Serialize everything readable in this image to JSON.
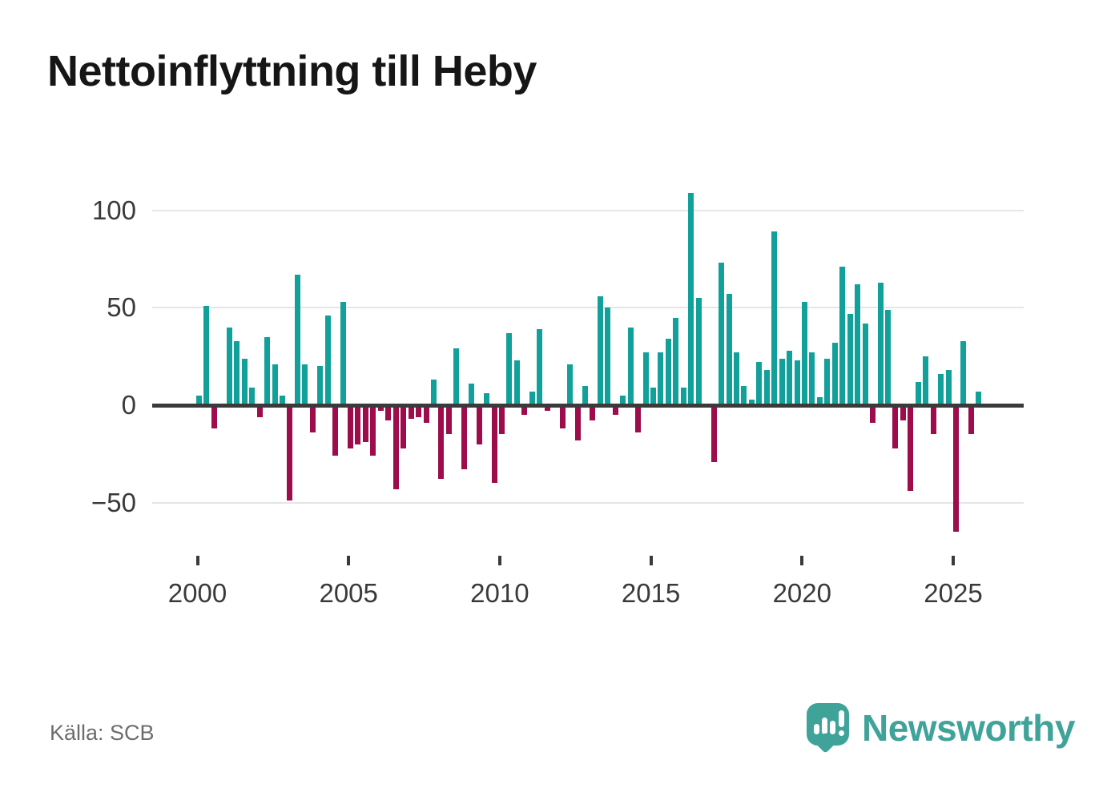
{
  "title": "Nettoinflyttning till Heby",
  "source": {
    "text": "Källa: SCB"
  },
  "logo": {
    "text": "Newsworthy",
    "color": "#3fa39a"
  },
  "chart_data": {
    "type": "bar",
    "title": "Nettoinflyttning till Heby",
    "frequency": "quarterly",
    "series": [
      {
        "year": 2000,
        "quarters": [
          5,
          51,
          -12,
          0
        ]
      },
      {
        "year": 2001,
        "quarters": [
          40,
          33,
          24,
          9
        ]
      },
      {
        "year": 2002,
        "quarters": [
          -6,
          35,
          21,
          5
        ]
      },
      {
        "year": 2003,
        "quarters": [
          -49,
          67,
          21,
          -14
        ]
      },
      {
        "year": 2004,
        "quarters": [
          20,
          46,
          -26,
          53
        ]
      },
      {
        "year": 2005,
        "quarters": [
          -22,
          -20,
          -19,
          -26
        ]
      },
      {
        "year": 2006,
        "quarters": [
          -3,
          -8,
          -43,
          -22
        ]
      },
      {
        "year": 2007,
        "quarters": [
          -7,
          -6,
          -9,
          13
        ]
      },
      {
        "year": 2008,
        "quarters": [
          -38,
          -15,
          29,
          -33
        ]
      },
      {
        "year": 2009,
        "quarters": [
          11,
          -20,
          6,
          -40
        ]
      },
      {
        "year": 2010,
        "quarters": [
          -15,
          37,
          23,
          -5
        ]
      },
      {
        "year": 2011,
        "quarters": [
          7,
          39,
          -3,
          0
        ]
      },
      {
        "year": 2012,
        "quarters": [
          -12,
          21,
          -18,
          10
        ]
      },
      {
        "year": 2013,
        "quarters": [
          -8,
          56,
          50,
          -5
        ]
      },
      {
        "year": 2014,
        "quarters": [
          5,
          40,
          -14,
          27
        ]
      },
      {
        "year": 2015,
        "quarters": [
          9,
          27,
          34,
          45
        ]
      },
      {
        "year": 2016,
        "quarters": [
          9,
          109,
          55,
          0
        ]
      },
      {
        "year": 2017,
        "quarters": [
          -29,
          73,
          57,
          27
        ]
      },
      {
        "year": 2018,
        "quarters": [
          10,
          3,
          22,
          18
        ]
      },
      {
        "year": 2019,
        "quarters": [
          89,
          24,
          28,
          23
        ]
      },
      {
        "year": 2020,
        "quarters": [
          53,
          27,
          4,
          24
        ]
      },
      {
        "year": 2021,
        "quarters": [
          32,
          71,
          47,
          62
        ]
      },
      {
        "year": 2022,
        "quarters": [
          42,
          -9,
          63,
          49
        ]
      },
      {
        "year": 2023,
        "quarters": [
          -22,
          -8,
          -44,
          12
        ]
      },
      {
        "year": 2024,
        "quarters": [
          25,
          -15,
          16,
          18
        ]
      },
      {
        "year": 2025,
        "quarters": [
          -65,
          33,
          -15,
          7
        ]
      }
    ],
    "x_tick_labels": [
      "2000",
      "2005",
      "2010",
      "2015",
      "2020",
      "2025"
    ],
    "y_ticks": [
      100,
      50,
      0,
      -50
    ],
    "y_tick_labels": [
      "100",
      "50",
      "0",
      "−50"
    ],
    "ylim": [
      -70,
      112
    ],
    "grid": "horizontal",
    "legend": "none",
    "positive_color": "#12a19a",
    "negative_color": "#9d0c4b",
    "axis_color": "#3a3a3a",
    "gridline_color": "#e5e5e5",
    "label_color": "#3a3a3a"
  }
}
